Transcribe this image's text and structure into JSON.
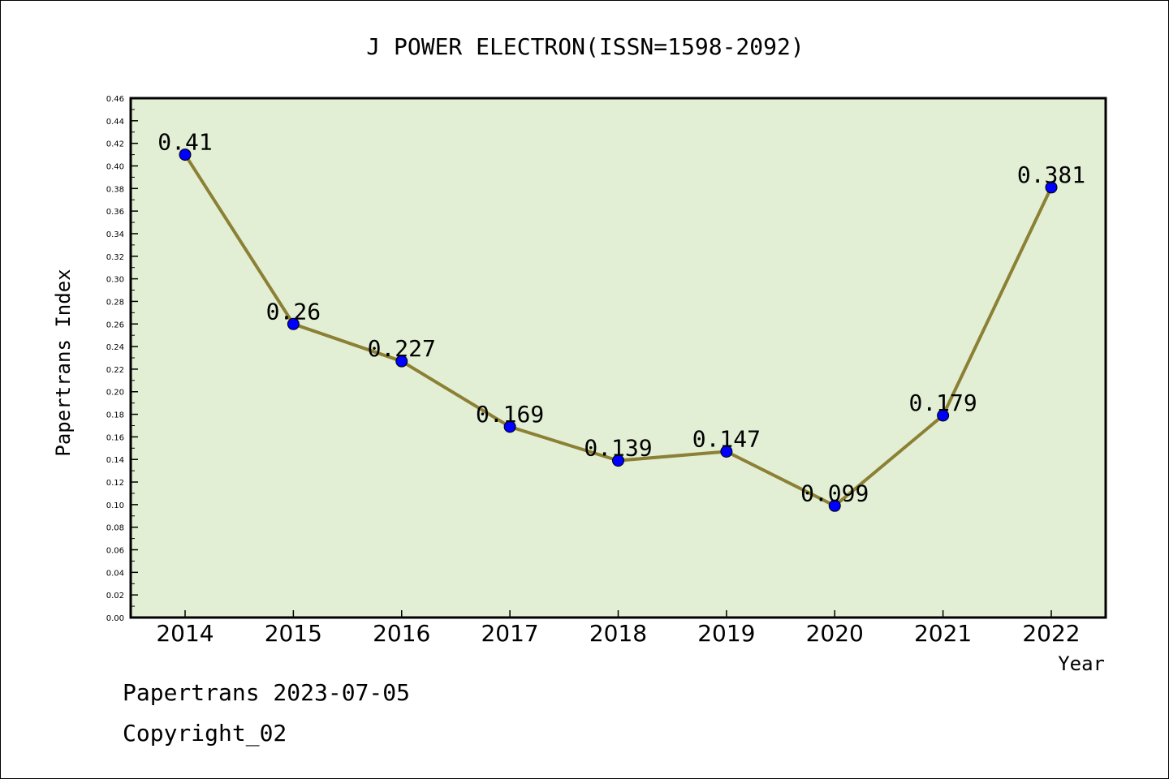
{
  "chart_data": {
    "type": "line",
    "title": "J POWER ELECTRON(ISSN=1598-2092)",
    "xlabel": "Year",
    "ylabel": "Papertrans Index",
    "categories": [
      "2014",
      "2015",
      "2016",
      "2017",
      "2018",
      "2019",
      "2020",
      "2021",
      "2022"
    ],
    "series": [
      {
        "values": [
          0.41,
          0.26,
          0.227,
          0.169,
          0.139,
          0.147,
          0.099,
          0.179,
          0.381
        ],
        "labels": [
          "0.41",
          "0.26",
          "0.227",
          "0.169",
          "0.139",
          "0.147",
          "0.099",
          "0.179",
          "0.381"
        ]
      }
    ],
    "ylim": [
      0,
      0.46
    ],
    "yticks": [
      "0.00",
      "0.02",
      "0.04",
      "0.06",
      "0.08",
      "0.10",
      "0.12",
      "0.14",
      "0.16",
      "0.18",
      "0.20",
      "0.22",
      "0.24",
      "0.26",
      "0.28",
      "0.30",
      "0.32",
      "0.34",
      "0.36",
      "0.38",
      "0.40",
      "0.42",
      "0.44",
      "0.46"
    ],
    "grid": false,
    "legend": "none",
    "colors": {
      "plot_background": "#e2efd5",
      "line": "#8b8034",
      "marker": "#0000ff",
      "frame": "#000000"
    }
  },
  "footer": {
    "line1": "Papertrans 2023-07-05",
    "line2": "Copyright_02"
  }
}
